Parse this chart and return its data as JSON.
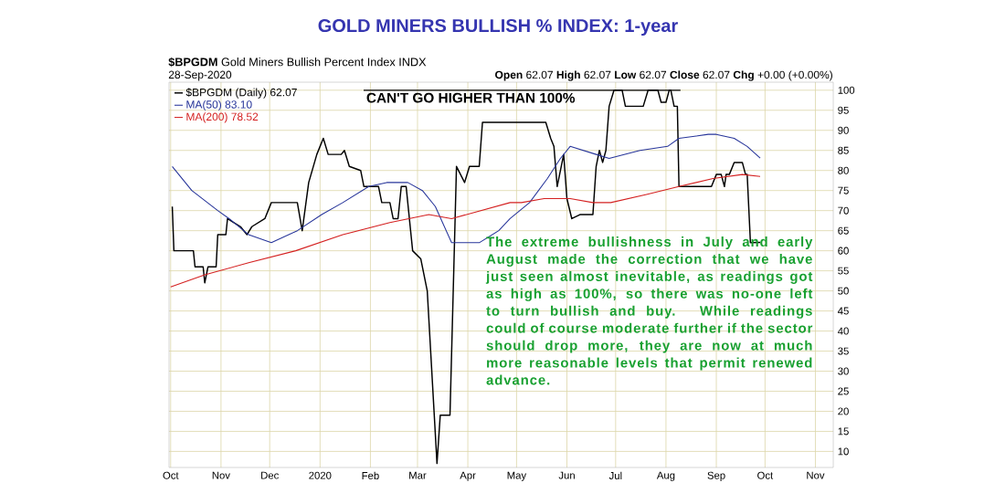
{
  "chart_data": {
    "type": "line",
    "title": "GOLD MINERS BULLISH % INDEX: 1-year",
    "subtitle": "**$BPGDM** Gold Miners Bullish Percent Index INDX",
    "annotations": [
      "28-Sep-2020",
      "**Open** 62.07 **High** 62.07 **Low** 62.07 **Close** 62.07 **Chg** +0.00 (+0.00%)",
      "The extreme bullishness in July and early August made the correction that we have just seen almost inevitable, as readings got as high as 100%, so there was no-one left to turn bullish and buy. While readings could of course moderate further if the sector should drop more, they are now at much more reasonable levels that permit renewed advance."
    ],
    "ref_lines": [
      {
        "axis": "y",
        "value": 100,
        "label": "CAN'T GO HIGHER THAN 100%",
        "color": "#000000"
      }
    ],
    "xlim": [
      "2019-09-30",
      "2020-11-12"
    ],
    "xticks": [
      {
        "value": "2019-10-01",
        "label": "Oct"
      },
      {
        "value": "2019-11-01",
        "label": "Nov"
      },
      {
        "value": "2019-12-01",
        "label": "Dec"
      },
      {
        "value": "2020-01-01",
        "label": "2020"
      },
      {
        "value": "2020-02-01",
        "label": "Feb"
      },
      {
        "value": "2020-03-01",
        "label": "Mar"
      },
      {
        "value": "2020-04-01",
        "label": "Apr"
      },
      {
        "value": "2020-05-01",
        "label": "May"
      },
      {
        "value": "2020-06-01",
        "label": "Jun"
      },
      {
        "value": "2020-07-01",
        "label": "Jul"
      },
      {
        "value": "2020-08-01",
        "label": "Aug"
      },
      {
        "value": "2020-09-01",
        "label": "Sep"
      },
      {
        "value": "2020-10-01",
        "label": "Oct"
      },
      {
        "value": "2020-11-01",
        "label": "Nov"
      }
    ],
    "ylim": [
      6,
      102
    ],
    "yticks": [
      10,
      15,
      20,
      25,
      30,
      35,
      40,
      45,
      50,
      55,
      60,
      65,
      70,
      75,
      80,
      85,
      90,
      95,
      100
    ],
    "grid": true,
    "legend": "top left",
    "marker": "none",
    "line_style": "solid",
    "series": [
      {
        "name": "$BPGDM (Daily) 62.07",
        "color": "#000000",
        "x": [
          "2019-10-02",
          "2019-10-03",
          "2019-10-15",
          "2019-10-16",
          "2019-10-21",
          "2019-10-22",
          "2019-10-24",
          "2019-10-29",
          "2019-10-30",
          "2019-11-04",
          "2019-11-05",
          "2019-11-13",
          "2019-11-17",
          "2019-11-20",
          "2019-11-28",
          "2019-12-02",
          "2019-12-18",
          "2019-12-21",
          "2019-12-25",
          "2019-12-30",
          "2020-01-03",
          "2020-01-06",
          "2020-01-14",
          "2020-01-16",
          "2020-01-19",
          "2020-01-26",
          "2020-01-28",
          "2020-02-06",
          "2020-02-08",
          "2020-02-13",
          "2020-02-15",
          "2020-02-18",
          "2020-02-20",
          "2020-02-23",
          "2020-02-25",
          "2020-02-27",
          "2020-03-03",
          "2020-03-07",
          "2020-03-13",
          "2020-03-15",
          "2020-03-21",
          "2020-03-25",
          "2020-03-30",
          "2020-04-02",
          "2020-04-08",
          "2020-04-10",
          "2020-05-19",
          "2020-05-22",
          "2020-05-24",
          "2020-05-26",
          "2020-05-30",
          "2020-06-01",
          "2020-06-04",
          "2020-06-09",
          "2020-06-17",
          "2020-06-19",
          "2020-06-21",
          "2020-06-23",
          "2020-06-25",
          "2020-06-27",
          "2020-06-30",
          "2020-07-05",
          "2020-07-07",
          "2020-07-18",
          "2020-07-21",
          "2020-07-27",
          "2020-07-29",
          "2020-08-01",
          "2020-08-03",
          "2020-08-04",
          "2020-08-06",
          "2020-08-08",
          "2020-08-09",
          "2020-08-29",
          "2020-09-01",
          "2020-09-04",
          "2020-09-06",
          "2020-09-07",
          "2020-09-09",
          "2020-09-12",
          "2020-09-17",
          "2020-09-19",
          "2020-09-20",
          "2020-09-22",
          "2020-09-28"
        ],
        "values": [
          71,
          60,
          60,
          56,
          56,
          52,
          56,
          56,
          64,
          64,
          68,
          66,
          64,
          66,
          68,
          72,
          72,
          65,
          77,
          84,
          88,
          84,
          84,
          85,
          81,
          80,
          76,
          76,
          72,
          72,
          68,
          68,
          76,
          76,
          68,
          60,
          58,
          50,
          7,
          19,
          19,
          81,
          77,
          81,
          81,
          92,
          92,
          88,
          86,
          76,
          84,
          73,
          68,
          69,
          69,
          81,
          85,
          82,
          85,
          96,
          100,
          100,
          96,
          96,
          100,
          100,
          97,
          97,
          100,
          100,
          96,
          96,
          76,
          76,
          79,
          79,
          76,
          79,
          79,
          82,
          82,
          79,
          79,
          62,
          62.07
        ]
      },
      {
        "name": "MA(50) 83.10",
        "color": "#27359a",
        "x": [
          "2019-10-02",
          "2019-10-14",
          "2019-10-30",
          "2019-11-06",
          "2019-11-18",
          "2019-12-02",
          "2019-12-18",
          "2020-01-02",
          "2020-01-15",
          "2020-01-31",
          "2020-02-11",
          "2020-02-24",
          "2020-03-04",
          "2020-03-12",
          "2020-03-22",
          "2020-04-01",
          "2020-04-08",
          "2020-04-20",
          "2020-04-27",
          "2020-05-09",
          "2020-05-20",
          "2020-05-28",
          "2020-06-03",
          "2020-06-19",
          "2020-06-27",
          "2020-07-16",
          "2020-08-02",
          "2020-08-09",
          "2020-08-27",
          "2020-09-01",
          "2020-09-12",
          "2020-09-20",
          "2020-09-28"
        ],
        "values": [
          81,
          75,
          70,
          68,
          64,
          62,
          65,
          69,
          72,
          76,
          77,
          77,
          75,
          71,
          62,
          62,
          62,
          65,
          68,
          72,
          78,
          83,
          86,
          84,
          83,
          85,
          86,
          88,
          89,
          89,
          88,
          86,
          83.1
        ]
      },
      {
        "name": "MA(200) 78.52",
        "color": "#d42020",
        "x": [
          "2019-10-01",
          "2019-10-22",
          "2019-11-18",
          "2019-12-17",
          "2020-01-15",
          "2020-02-13",
          "2020-03-08",
          "2020-03-22",
          "2020-04-27",
          "2020-05-04",
          "2020-05-18",
          "2020-06-03",
          "2020-06-17",
          "2020-06-28",
          "2020-07-20",
          "2020-08-09",
          "2020-08-30",
          "2020-09-17",
          "2020-09-28"
        ],
        "values": [
          51,
          54,
          57,
          60,
          64,
          67,
          69,
          68,
          72,
          72,
          73,
          73,
          72,
          72,
          74,
          76,
          78,
          79,
          78.52
        ]
      }
    ]
  }
}
